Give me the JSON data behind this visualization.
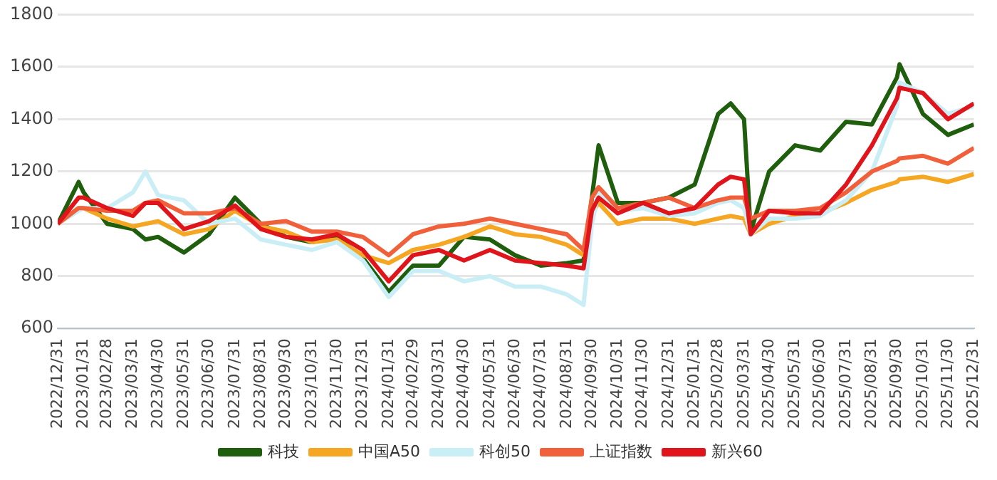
{
  "chart_data": {
    "type": "line",
    "x": [
      "2022-12-31",
      "2023-01-25",
      "2023-01-31",
      "2023-02-28",
      "2023-03-31",
      "2023-04-15",
      "2023-04-30",
      "2023-05-31",
      "2023-06-30",
      "2023-07-31",
      "2023-08-31",
      "2023-09-30",
      "2023-10-31",
      "2023-11-30",
      "2023-12-31",
      "2024-01-31",
      "2024-02-29",
      "2024-03-31",
      "2024-04-30",
      "2024-05-31",
      "2024-06-30",
      "2024-07-31",
      "2024-08-31",
      "2024-09-20",
      "2024-09-30",
      "2024-10-08",
      "2024-10-31",
      "2024-11-30",
      "2024-12-31",
      "2025-01-31",
      "2025-02-28",
      "2025-03-15",
      "2025-03-31",
      "2025-04-08",
      "2025-04-30",
      "2025-05-31",
      "2025-06-30",
      "2025-07-31",
      "2025-08-31",
      "2025-09-30",
      "2025-10-03",
      "2025-10-31",
      "2025-11-30",
      "2025-12-31"
    ],
    "series": [
      {
        "name": "科技",
        "color": "#1e5e0c",
        "values": [
          1000,
          1160,
          1120,
          1000,
          980,
          940,
          950,
          890,
          960,
          1100,
          1000,
          950,
          930,
          950,
          870,
          740,
          840,
          840,
          950,
          940,
          880,
          840,
          850,
          860,
          1100,
          1300,
          1080,
          1080,
          1100,
          1150,
          1420,
          1460,
          1400,
          970,
          1200,
          1300,
          1280,
          1390,
          1380,
          1560,
          1610,
          1420,
          1340,
          1380
        ]
      },
      {
        "name": "中国A50",
        "color": "#f5a623",
        "values": [
          1000,
          1060,
          1060,
          1020,
          990,
          1000,
          1010,
          960,
          980,
          1050,
          990,
          970,
          930,
          940,
          880,
          850,
          900,
          920,
          950,
          990,
          960,
          950,
          920,
          880,
          1040,
          1080,
          1000,
          1020,
          1020,
          1000,
          1020,
          1030,
          1020,
          960,
          1000,
          1030,
          1040,
          1080,
          1130,
          1160,
          1170,
          1180,
          1160,
          1190
        ]
      },
      {
        "name": "科创50",
        "color": "#c9eef5",
        "values": [
          1000,
          1050,
          1060,
          1060,
          1120,
          1200,
          1110,
          1090,
          1000,
          1020,
          940,
          920,
          900,
          930,
          860,
          720,
          820,
          820,
          780,
          800,
          760,
          760,
          730,
          690,
          1000,
          1120,
          1050,
          1060,
          1030,
          1040,
          1080,
          1090,
          1060,
          960,
          1020,
          1020,
          1030,
          1090,
          1200,
          1450,
          1540,
          1500,
          1420,
          1450
        ]
      },
      {
        "name": "上证指数",
        "color": "#f0603a",
        "values": [
          1000,
          1060,
          1060,
          1050,
          1050,
          1080,
          1090,
          1040,
          1040,
          1060,
          1000,
          1010,
          970,
          970,
          950,
          880,
          960,
          990,
          1000,
          1020,
          1000,
          980,
          960,
          900,
          1100,
          1140,
          1060,
          1080,
          1100,
          1060,
          1090,
          1100,
          1100,
          1020,
          1050,
          1050,
          1060,
          1120,
          1200,
          1240,
          1250,
          1260,
          1230,
          1290
        ]
      },
      {
        "name": "新兴60",
        "color": "#e0141b",
        "values": [
          1000,
          1100,
          1100,
          1060,
          1030,
          1080,
          1080,
          980,
          1010,
          1070,
          980,
          950,
          940,
          960,
          900,
          780,
          880,
          900,
          860,
          900,
          860,
          850,
          840,
          830,
          1050,
          1100,
          1040,
          1080,
          1040,
          1060,
          1150,
          1180,
          1170,
          960,
          1050,
          1040,
          1040,
          1150,
          1300,
          1480,
          1520,
          1500,
          1400,
          1460
        ]
      }
    ],
    "xlim": [
      "2022-12-31",
      "2025-12-31"
    ],
    "xticks": [
      {
        "value": "2022-12-31",
        "label": "2022/12/31"
      },
      {
        "value": "2023-01-31",
        "label": "2023/01/31"
      },
      {
        "value": "2023-02-28",
        "label": "2023/02/28"
      },
      {
        "value": "2023-03-31",
        "label": "2023/03/31"
      },
      {
        "value": "2023-04-30",
        "label": "2023/04/30"
      },
      {
        "value": "2023-05-31",
        "label": "2023/05/31"
      },
      {
        "value": "2023-06-30",
        "label": "2023/06/30"
      },
      {
        "value": "2023-07-31",
        "label": "2023/07/31"
      },
      {
        "value": "2023-08-31",
        "label": "2023/08/31"
      },
      {
        "value": "2023-09-30",
        "label": "2023/09/30"
      },
      {
        "value": "2023-10-31",
        "label": "2023/10/31"
      },
      {
        "value": "2023-11-30",
        "label": "2023/11/30"
      },
      {
        "value": "2023-12-31",
        "label": "2023/12/31"
      },
      {
        "value": "2024-01-31",
        "label": "2024/01/31"
      },
      {
        "value": "2024-02-29",
        "label": "2024/02/29"
      },
      {
        "value": "2024-03-31",
        "label": "2024/03/31"
      },
      {
        "value": "2024-04-30",
        "label": "2024/04/30"
      },
      {
        "value": "2024-05-31",
        "label": "2024/05/31"
      },
      {
        "value": "2024-06-30",
        "label": "2024/06/30"
      },
      {
        "value": "2024-07-31",
        "label": "2024/07/31"
      },
      {
        "value": "2024-08-31",
        "label": "2024/08/31"
      },
      {
        "value": "2024-09-30",
        "label": "2024/09/30"
      },
      {
        "value": "2024-10-31",
        "label": "2024/10/31"
      },
      {
        "value": "2024-11-30",
        "label": "2024/11/30"
      },
      {
        "value": "2024-12-31",
        "label": "2024/12/31"
      },
      {
        "value": "2025-01-31",
        "label": "2025/01/31"
      },
      {
        "value": "2025-02-28",
        "label": "2025/02/28"
      },
      {
        "value": "2025-03-31",
        "label": "2025/03/31"
      },
      {
        "value": "2025-04-30",
        "label": "2025/04/30"
      },
      {
        "value": "2025-05-31",
        "label": "2025/05/31"
      },
      {
        "value": "2025-06-30",
        "label": "2025/06/30"
      },
      {
        "value": "2025-07-31",
        "label": "2025/07/31"
      },
      {
        "value": "2025-08-31",
        "label": "2025/08/31"
      },
      {
        "value": "2025-09-30",
        "label": "2025/09/30"
      },
      {
        "value": "2025-10-31",
        "label": "2025/10/31"
      },
      {
        "value": "2025-11-30",
        "label": "2025/11/30"
      },
      {
        "value": "2025-12-31",
        "label": "2025/12/31"
      }
    ],
    "ylim": [
      600,
      1800
    ],
    "yticks": [
      600,
      800,
      1000,
      1200,
      1400,
      1600,
      1800
    ],
    "grid": "y",
    "legend": "bottom",
    "marker": "none",
    "line_style": "solid"
  }
}
